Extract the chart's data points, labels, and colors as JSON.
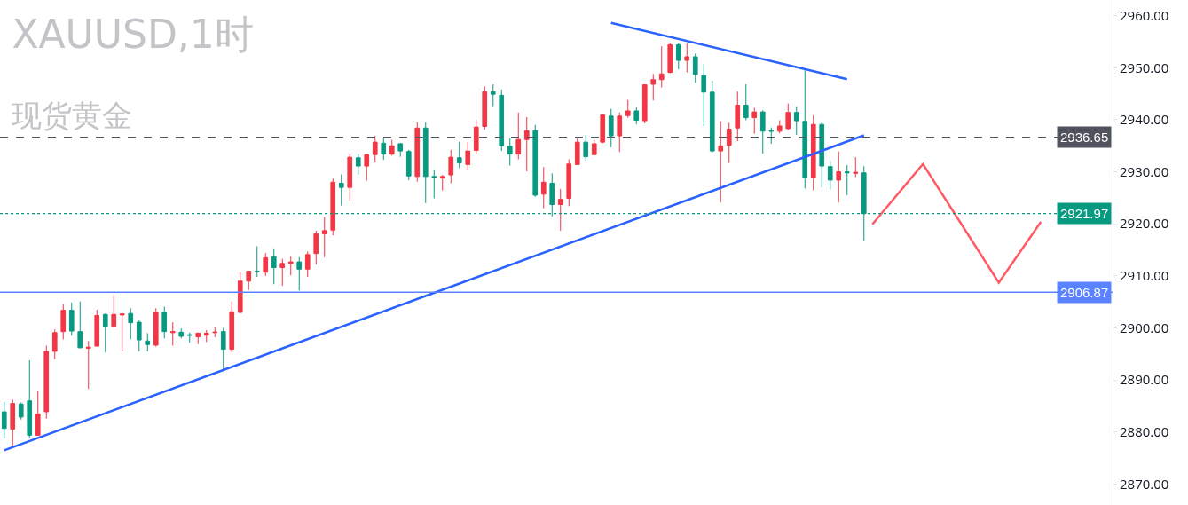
{
  "chart_data": {
    "type": "candlestick",
    "title": "XAUUSD,1时",
    "subtitle": "现货黄金",
    "categories": [
      null,
      null,
      null,
      null,
      null,
      null,
      null,
      null,
      null,
      null,
      null,
      null,
      null,
      null,
      null,
      null,
      null,
      null,
      null,
      null,
      null,
      null,
      null,
      null,
      null,
      null,
      null,
      null,
      null,
      null,
      null,
      null,
      null,
      null,
      null,
      null,
      null,
      null,
      null,
      null,
      null,
      null,
      null,
      null,
      null,
      null,
      null,
      null,
      null,
      null,
      null,
      null,
      null,
      null,
      null,
      null,
      null,
      null,
      null,
      null,
      null,
      null,
      null,
      null,
      null,
      null,
      null,
      null,
      null,
      null,
      null,
      null,
      null,
      null,
      null,
      null,
      null,
      null,
      null,
      null,
      null,
      null,
      null,
      null,
      null,
      null,
      null,
      null,
      null,
      null,
      null,
      null,
      null,
      null,
      null,
      null,
      null,
      null,
      null,
      null,
      null,
      null,
      null,
      null,
      null,
      null,
      null,
      null,
      null,
      null,
      null,
      null,
      null,
      null,
      null,
      null,
      null,
      null,
      null,
      null,
      null,
      null,
      null,
      null,
      null,
      null,
      null,
      null,
      null,
      null,
      null,
      null
    ],
    "ohlc": [
      [
        2883.9,
        2885.8,
        2878.8,
        2880.7
      ],
      [
        2880.6,
        2886.2,
        2877.1,
        2885.5
      ],
      [
        2885.4,
        2885.7,
        2882.4,
        2882.9
      ],
      [
        2886.0,
        2893.8,
        2878.9,
        2879.4
      ],
      [
        2879.4,
        2888.0,
        2879.4,
        2883.5
      ],
      [
        2883.9,
        2896.6,
        2882.6,
        2895.5
      ],
      [
        2895.5,
        2899.7,
        2894.0,
        2899.1
      ],
      [
        2899.3,
        2904.6,
        2897.8,
        2903.4
      ],
      [
        2903.4,
        2904.9,
        2898.5,
        2899.4
      ],
      [
        2899.3,
        2905.1,
        2896.1,
        2896.2
      ],
      [
        2896.1,
        2897.5,
        2888.3,
        2896.3
      ],
      [
        2896.5,
        2903.5,
        2896.5,
        2902.4
      ],
      [
        2902.6,
        2902.8,
        2895.3,
        2900.3
      ],
      [
        2900.3,
        2906.3,
        2900.3,
        2902.6
      ],
      [
        2902.5,
        2902.9,
        2895.5,
        2902.7
      ],
      [
        2902.8,
        2903.8,
        2897.8,
        2901.0
      ],
      [
        2901.1,
        2901.5,
        2895.5,
        2897.7
      ],
      [
        2897.5,
        2899.0,
        2895.5,
        2896.8
      ],
      [
        2896.7,
        2903.8,
        2896.4,
        2903.0
      ],
      [
        2903.0,
        2904.1,
        2898.0,
        2899.3
      ],
      [
        2899.1,
        2901.1,
        2896.6,
        2899.3
      ],
      [
        2899.2,
        2899.9,
        2898.0,
        2898.4
      ],
      [
        2898.7,
        2899.1,
        2897.2,
        2898.6
      ],
      [
        2898.3,
        2899.1,
        2896.9,
        2899.0
      ],
      [
        2898.6,
        2899.6,
        2897.3,
        2899.0
      ],
      [
        2899.1,
        2900.1,
        2898.2,
        2899.2
      ],
      [
        2899.3,
        2900.0,
        2892.1,
        2895.9
      ],
      [
        2895.9,
        2905.1,
        2895.3,
        2903.1
      ],
      [
        2903.0,
        2910.7,
        2902.8,
        2909.0
      ],
      [
        2909.0,
        2911.0,
        2907.3,
        2910.9
      ],
      [
        2910.9,
        2915.7,
        2909.8,
        2910.8
      ],
      [
        2910.7,
        2914.4,
        2910.0,
        2913.5
      ],
      [
        2913.7,
        2915.3,
        2908.4,
        2911.6
      ],
      [
        2911.6,
        2913.3,
        2908.1,
        2912.4
      ],
      [
        2912.4,
        2913.7,
        2910.1,
        2912.7
      ],
      [
        2912.7,
        2913.6,
        2907.2,
        2911.3
      ],
      [
        2911.3,
        2914.7,
        2909.8,
        2914.1
      ],
      [
        2914.3,
        2918.7,
        2912.2,
        2918.1
      ],
      [
        2918.1,
        2921.3,
        2913.6,
        2918.7
      ],
      [
        2918.8,
        2928.7,
        2917.8,
        2928.0
      ],
      [
        2927.8,
        2929.5,
        2923.5,
        2927.0
      ],
      [
        2927.0,
        2933.5,
        2924.4,
        2932.8
      ],
      [
        2932.7,
        2933.5,
        2929.5,
        2931.1
      ],
      [
        2931.1,
        2933.5,
        2928.3,
        2933.3
      ],
      [
        2933.3,
        2936.9,
        2931.8,
        2935.7
      ],
      [
        2935.5,
        2936.5,
        2932.3,
        2933.4
      ],
      [
        2933.4,
        2936.1,
        2933.1,
        2935.0
      ],
      [
        2935.4,
        2935.5,
        2932.9,
        2934.0
      ],
      [
        2933.9,
        2934.2,
        2928.4,
        2929.2
      ],
      [
        2929.1,
        2939.5,
        2928.1,
        2938.4
      ],
      [
        2938.4,
        2939.5,
        2924.0,
        2929.1
      ],
      [
        2929.1,
        2930.3,
        2924.9,
        2929.0
      ],
      [
        2928.8,
        2929.4,
        2926.4,
        2929.1
      ],
      [
        2929.4,
        2934.2,
        2927.8,
        2932.8
      ],
      [
        2932.7,
        2935.8,
        2930.7,
        2931.7
      ],
      [
        2931.4,
        2935.7,
        2930.4,
        2934.0
      ],
      [
        2934.1,
        2939.9,
        2933.5,
        2938.6
      ],
      [
        2938.7,
        2946.4,
        2938.1,
        2945.4
      ],
      [
        2945.4,
        2946.8,
        2942.6,
        2944.9
      ],
      [
        2944.7,
        2945.8,
        2934.0,
        2935.0
      ],
      [
        2934.9,
        2936.4,
        2931.2,
        2933.4
      ],
      [
        2933.4,
        2941.4,
        2932.4,
        2936.2
      ],
      [
        2936.2,
        2940.5,
        2930.1,
        2937.9
      ],
      [
        2937.9,
        2939.0,
        2925.2,
        2925.5
      ],
      [
        2925.7,
        2930.9,
        2923.0,
        2928.0
      ],
      [
        2927.8,
        2929.7,
        2921.4,
        2923.7
      ],
      [
        2923.7,
        2926.7,
        2918.7,
        2924.7
      ],
      [
        2924.9,
        2932.4,
        2923.4,
        2931.5
      ],
      [
        2931.4,
        2936.4,
        2931.3,
        2935.7
      ],
      [
        2935.7,
        2937.1,
        2932.1,
        2932.9
      ],
      [
        2933.3,
        2936.1,
        2933.3,
        2935.4
      ],
      [
        2935.7,
        2941.1,
        2935.5,
        2940.9
      ],
      [
        2940.7,
        2942.1,
        2934.7,
        2936.9
      ],
      [
        2936.9,
        2941.4,
        2933.8,
        2940.7
      ],
      [
        2940.8,
        2943.8,
        2940.4,
        2941.7
      ],
      [
        2941.7,
        2942.4,
        2939.1,
        2939.9
      ],
      [
        2939.8,
        2946.8,
        2939.3,
        2946.7
      ],
      [
        2946.8,
        2948.8,
        2943.7,
        2947.7
      ],
      [
        2947.7,
        2954.1,
        2946.2,
        2948.8
      ],
      [
        2949.1,
        2954.7,
        2948.9,
        2954.4
      ],
      [
        2954.4,
        2954.7,
        2949.7,
        2951.4
      ],
      [
        2951.4,
        2954.7,
        2949.1,
        2952.1
      ],
      [
        2952.1,
        2952.7,
        2947.1,
        2948.7
      ],
      [
        2948.5,
        2950.7,
        2938.8,
        2945.3
      ],
      [
        2945.3,
        2947.5,
        2933.7,
        2934.0
      ],
      [
        2934.0,
        2939.7,
        2924.1,
        2935.0
      ],
      [
        2935.1,
        2939.4,
        2931.7,
        2938.2
      ],
      [
        2938.4,
        2945.4,
        2935.9,
        2942.8
      ],
      [
        2942.8,
        2946.8,
        2939.9,
        2940.4
      ],
      [
        2940.4,
        2942.3,
        2937.3,
        2941.5
      ],
      [
        2941.5,
        2941.8,
        2933.5,
        2937.8
      ],
      [
        2937.9,
        2938.5,
        2935.4,
        2937.8
      ],
      [
        2937.8,
        2939.9,
        2937.4,
        2938.8
      ],
      [
        2938.3,
        2943.1,
        2938.0,
        2941.4
      ],
      [
        2941.4,
        2942.6,
        2937.1,
        2939.8
      ],
      [
        2939.7,
        2949.5,
        2926.8,
        2928.9
      ],
      [
        2928.9,
        2940.9,
        2926.4,
        2939.1
      ],
      [
        2939.1,
        2939.5,
        2927.0,
        2931.1
      ],
      [
        2931.0,
        2932.1,
        2926.6,
        2928.4
      ],
      [
        2928.4,
        2933.9,
        2924.1,
        2930.0
      ],
      [
        2930.0,
        2931.3,
        2925.5,
        2929.8
      ],
      [
        2929.7,
        2932.8,
        2929.0,
        2929.9
      ],
      [
        2929.8,
        2931.1,
        2916.7,
        2921.97
      ],
      null,
      null,
      null,
      null,
      null,
      null,
      null,
      null,
      null,
      null,
      null,
      null,
      null,
      null,
      null,
      null,
      null,
      null,
      null,
      null,
      null,
      null,
      null,
      null,
      null,
      null,
      null,
      null,
      null
    ],
    "colors": [
      "#089981",
      "#f23645",
      "#089981",
      "#089981",
      "#f23645",
      "#f23645",
      "#f23645",
      "#f23645",
      "#089981",
      "#089981",
      "#f23645",
      "#f23645",
      "#089981",
      "#f23645",
      "#f23645",
      "#089981",
      "#089981",
      "#089981",
      "#f23645",
      "#089981",
      "#f23645",
      "#089981",
      "#089981",
      "#f23645",
      "#f23645",
      "#f23645",
      "#089981",
      "#f23645",
      "#f23645",
      "#f23645",
      "#089981",
      "#f23645",
      "#089981",
      "#f23645",
      "#f23645",
      "#089981",
      "#f23645",
      "#f23645",
      "#f23645",
      "#f23645",
      "#089981",
      "#f23645",
      "#089981",
      "#f23645",
      "#f23645",
      "#089981",
      "#f23645",
      "#089981",
      "#089981",
      "#f23645",
      "#089981",
      "#089981",
      "#f23645",
      "#f23645",
      "#089981",
      "#f23645",
      "#f23645",
      "#f23645",
      "#089981",
      "#089981",
      "#089981",
      "#f23645",
      "#f23645",
      "#089981",
      "#f23645",
      "#089981",
      "#f23645",
      "#f23645",
      "#f23645",
      "#089981",
      "#f23645",
      "#f23645",
      "#089981",
      "#f23645",
      "#f23645",
      "#089981",
      "#f23645",
      "#f23645",
      "#f23645",
      "#f23645",
      "#089981",
      "#f23645",
      "#089981",
      "#089981",
      "#089981",
      "#f23645",
      "#f23645",
      "#f23645",
      "#089981",
      "#f23645",
      "#089981",
      "#089981",
      "#f23645",
      "#f23645",
      "#089981",
      "#089981",
      "#f23645",
      "#089981",
      "#089981",
      "#f23645",
      "#089981",
      "#f23645",
      "#089981",
      null,
      null,
      null,
      null,
      null,
      null,
      null,
      null,
      null,
      null,
      null,
      null,
      null,
      null,
      null,
      null,
      null,
      null,
      null,
      null,
      null,
      null,
      null,
      null,
      null,
      null,
      null,
      null,
      null
    ],
    "series": [
      {
        "type": "line",
        "color": "#2962ff",
        "values": [
          2876.5,
          null,
          null,
          null,
          null,
          null,
          null,
          null,
          null,
          null,
          null,
          null,
          null,
          null,
          null,
          null,
          null,
          null,
          null,
          null,
          null,
          null,
          null,
          null,
          null,
          null,
          null,
          null,
          null,
          null,
          null,
          null,
          null,
          null,
          null,
          null,
          null,
          null,
          null,
          null,
          null,
          null,
          null,
          null,
          null,
          null,
          null,
          null,
          null,
          null,
          null,
          null,
          null,
          null,
          null,
          null,
          null,
          null,
          null,
          null,
          null,
          null,
          null,
          null,
          null,
          null,
          null,
          null,
          null,
          null,
          null,
          null,
          null,
          null,
          null,
          null,
          null,
          null,
          null,
          null,
          null,
          null,
          null,
          null,
          null,
          null,
          null,
          null,
          null,
          null,
          null,
          null,
          null,
          null,
          null,
          null,
          null,
          null,
          null,
          null,
          null,
          null,
          2937.0,
          null,
          null,
          null,
          null,
          null,
          null,
          null,
          null,
          null,
          null,
          null,
          null,
          null,
          null,
          null,
          null,
          null,
          null,
          null,
          null,
          null,
          null,
          null,
          null,
          null,
          null,
          null,
          null,
          null
        ]
      },
      {
        "type": "line",
        "color": "#2962ff",
        "values": [
          null,
          null,
          null,
          null,
          null,
          null,
          null,
          null,
          null,
          null,
          null,
          null,
          null,
          null,
          null,
          null,
          null,
          null,
          null,
          null,
          null,
          null,
          null,
          null,
          null,
          null,
          null,
          null,
          null,
          null,
          null,
          null,
          null,
          null,
          null,
          null,
          null,
          null,
          null,
          null,
          null,
          null,
          null,
          null,
          null,
          null,
          null,
          null,
          null,
          null,
          null,
          null,
          null,
          null,
          null,
          null,
          null,
          null,
          null,
          null,
          null,
          null,
          null,
          null,
          null,
          null,
          null,
          null,
          null,
          null,
          null,
          null,
          2958.6,
          null,
          null,
          null,
          null,
          null,
          null,
          null,
          null,
          null,
          null,
          null,
          null,
          null,
          null,
          null,
          null,
          null,
          null,
          null,
          null,
          null,
          null,
          null,
          null,
          null,
          null,
          null,
          2947.8,
          null,
          null,
          null,
          null,
          null,
          null,
          null,
          null,
          null,
          null,
          null,
          null,
          null,
          null,
          null,
          null,
          null,
          null,
          null,
          null,
          null,
          null,
          null,
          null,
          null,
          null,
          null,
          null,
          null,
          null,
          null
        ]
      },
      {
        "type": "line",
        "color": "#ff5a64",
        "values": [
          null,
          null,
          null,
          null,
          null,
          null,
          null,
          null,
          null,
          null,
          null,
          null,
          null,
          null,
          null,
          null,
          null,
          null,
          null,
          null,
          null,
          null,
          null,
          null,
          null,
          null,
          null,
          null,
          null,
          null,
          null,
          null,
          null,
          null,
          null,
          null,
          null,
          null,
          null,
          null,
          null,
          null,
          null,
          null,
          null,
          null,
          null,
          null,
          null,
          null,
          null,
          null,
          null,
          null,
          null,
          null,
          null,
          null,
          null,
          null,
          null,
          null,
          null,
          null,
          null,
          null,
          null,
          null,
          null,
          null,
          null,
          null,
          null,
          null,
          null,
          null,
          null,
          null,
          null,
          null,
          null,
          null,
          null,
          null,
          null,
          null,
          null,
          null,
          null,
          null,
          null,
          null,
          null,
          null,
          null,
          null,
          null,
          null,
          null,
          null,
          null,
          null,
          null,
          2919.9,
          null,
          null,
          null,
          null,
          null,
          2931.5,
          null,
          null,
          null,
          null,
          null,
          null,
          null,
          null,
          2908.7,
          null,
          null,
          null,
          null,
          2920.4,
          null,
          null,
          null,
          null,
          null,
          null,
          null,
          null
        ]
      }
    ],
    "ylim": [
      2866,
      2963
    ],
    "yticks": [
      {
        "value": 2870,
        "label": "2870.00"
      },
      {
        "value": 2880,
        "label": "2880.00"
      },
      {
        "value": 2890,
        "label": "2890.00"
      },
      {
        "value": 2900,
        "label": "2900.00"
      },
      {
        "value": 2910,
        "label": "2910.00"
      },
      {
        "value": 2920,
        "label": "2920.00"
      },
      {
        "value": 2930,
        "label": "2930.00"
      },
      {
        "value": 2940,
        "label": "2940.00"
      },
      {
        "value": 2950,
        "label": "2950.00"
      },
      {
        "value": 2960,
        "label": "2960.00"
      }
    ],
    "ref_lines": [
      {
        "axis": "y",
        "value": 2936.65,
        "label": "2936.65",
        "color": "#50535e",
        "line_style": "dashed"
      },
      {
        "axis": "y",
        "value": 2921.97,
        "label": "2921.97",
        "color": "#089981",
        "line_style": "dotted"
      },
      {
        "axis": "y",
        "value": 2906.87,
        "label": "2906.87",
        "color": "#5b83ff",
        "line_style": "solid"
      }
    ],
    "tick_labels": "y"
  }
}
